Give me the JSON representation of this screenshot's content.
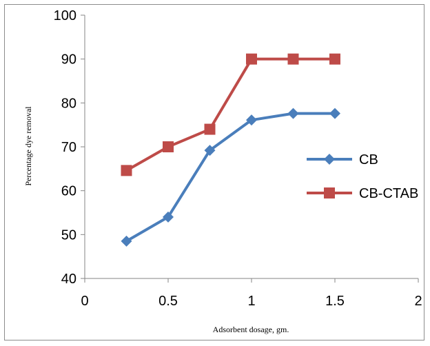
{
  "chart_data": {
    "type": "line",
    "title": "",
    "xlabel": "Adsorbent dosage, gm.",
    "ylabel": "Percentage dye removal",
    "xlim": [
      0,
      2
    ],
    "ylim": [
      40,
      100
    ],
    "x_ticks": [
      "0",
      "0.5",
      "1",
      "1.5",
      "2"
    ],
    "y_ticks": [
      "40",
      "50",
      "60",
      "70",
      "80",
      "90",
      "100"
    ],
    "grid": false,
    "legend_position": "right",
    "x": [
      0.25,
      0.5,
      0.75,
      1.0,
      1.25,
      1.5
    ],
    "series": [
      {
        "name": "CB",
        "values": [
          48.5,
          54,
          69.2,
          76.1,
          77.6,
          77.6
        ],
        "color": "#4a7ebb",
        "marker": "diamond"
      },
      {
        "name": "CB-CTAB",
        "values": [
          64.6,
          70,
          74,
          90,
          90,
          90
        ],
        "color": "#be4b48",
        "marker": "square"
      }
    ]
  }
}
